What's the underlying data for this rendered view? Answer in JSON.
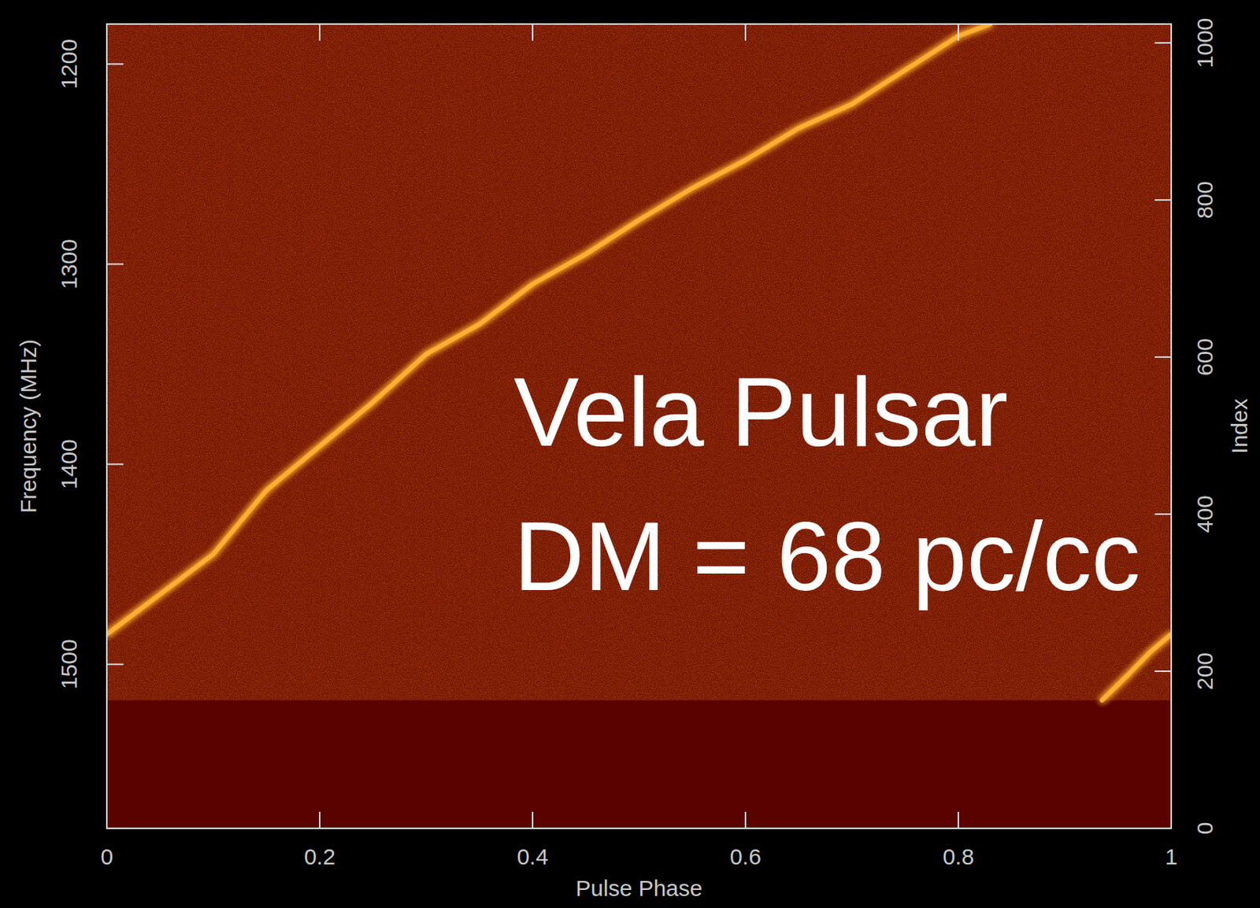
{
  "chart_data": {
    "type": "line",
    "x_label": "Pulse Phase",
    "y_label": "Frequency (MHz)",
    "y2_label": "Index",
    "annotations": [
      "Vela Pulsar",
      "DM = 68 pc/cc"
    ],
    "xlim": [
      0,
      1
    ],
    "xticks": [
      0,
      0.2,
      0.4,
      0.6,
      0.8,
      1
    ],
    "ylim": [
      1582,
      1180
    ],
    "yticks": [
      1200,
      1300,
      1400,
      1500
    ],
    "y2lim": [
      0,
      1024
    ],
    "y2ticks": [
      0,
      200,
      400,
      600,
      800,
      1000
    ],
    "flagged": [
      1518,
      1582
    ],
    "series": [
      {
        "color": "#ffb030",
        "x": [
          0,
          0.05,
          0.1,
          0.15,
          0.2,
          0.25,
          0.3,
          0.35,
          0.4,
          0.45,
          0.5,
          0.55,
          0.6,
          0.65,
          0.7,
          0.75,
          0.8,
          0.83
        ],
        "values": [
          1485,
          1465,
          1445,
          1413,
          1391,
          1369,
          1345,
          1330,
          1310,
          1295,
          1278,
          1262,
          1248,
          1232,
          1220,
          1203,
          1186,
          1180
        ]
      },
      {
        "color": "#ffb030",
        "x": [
          0.935,
          0.96,
          0.98,
          1
        ],
        "values": [
          1518,
          1505,
          1494,
          1485
        ]
      }
    ]
  }
}
